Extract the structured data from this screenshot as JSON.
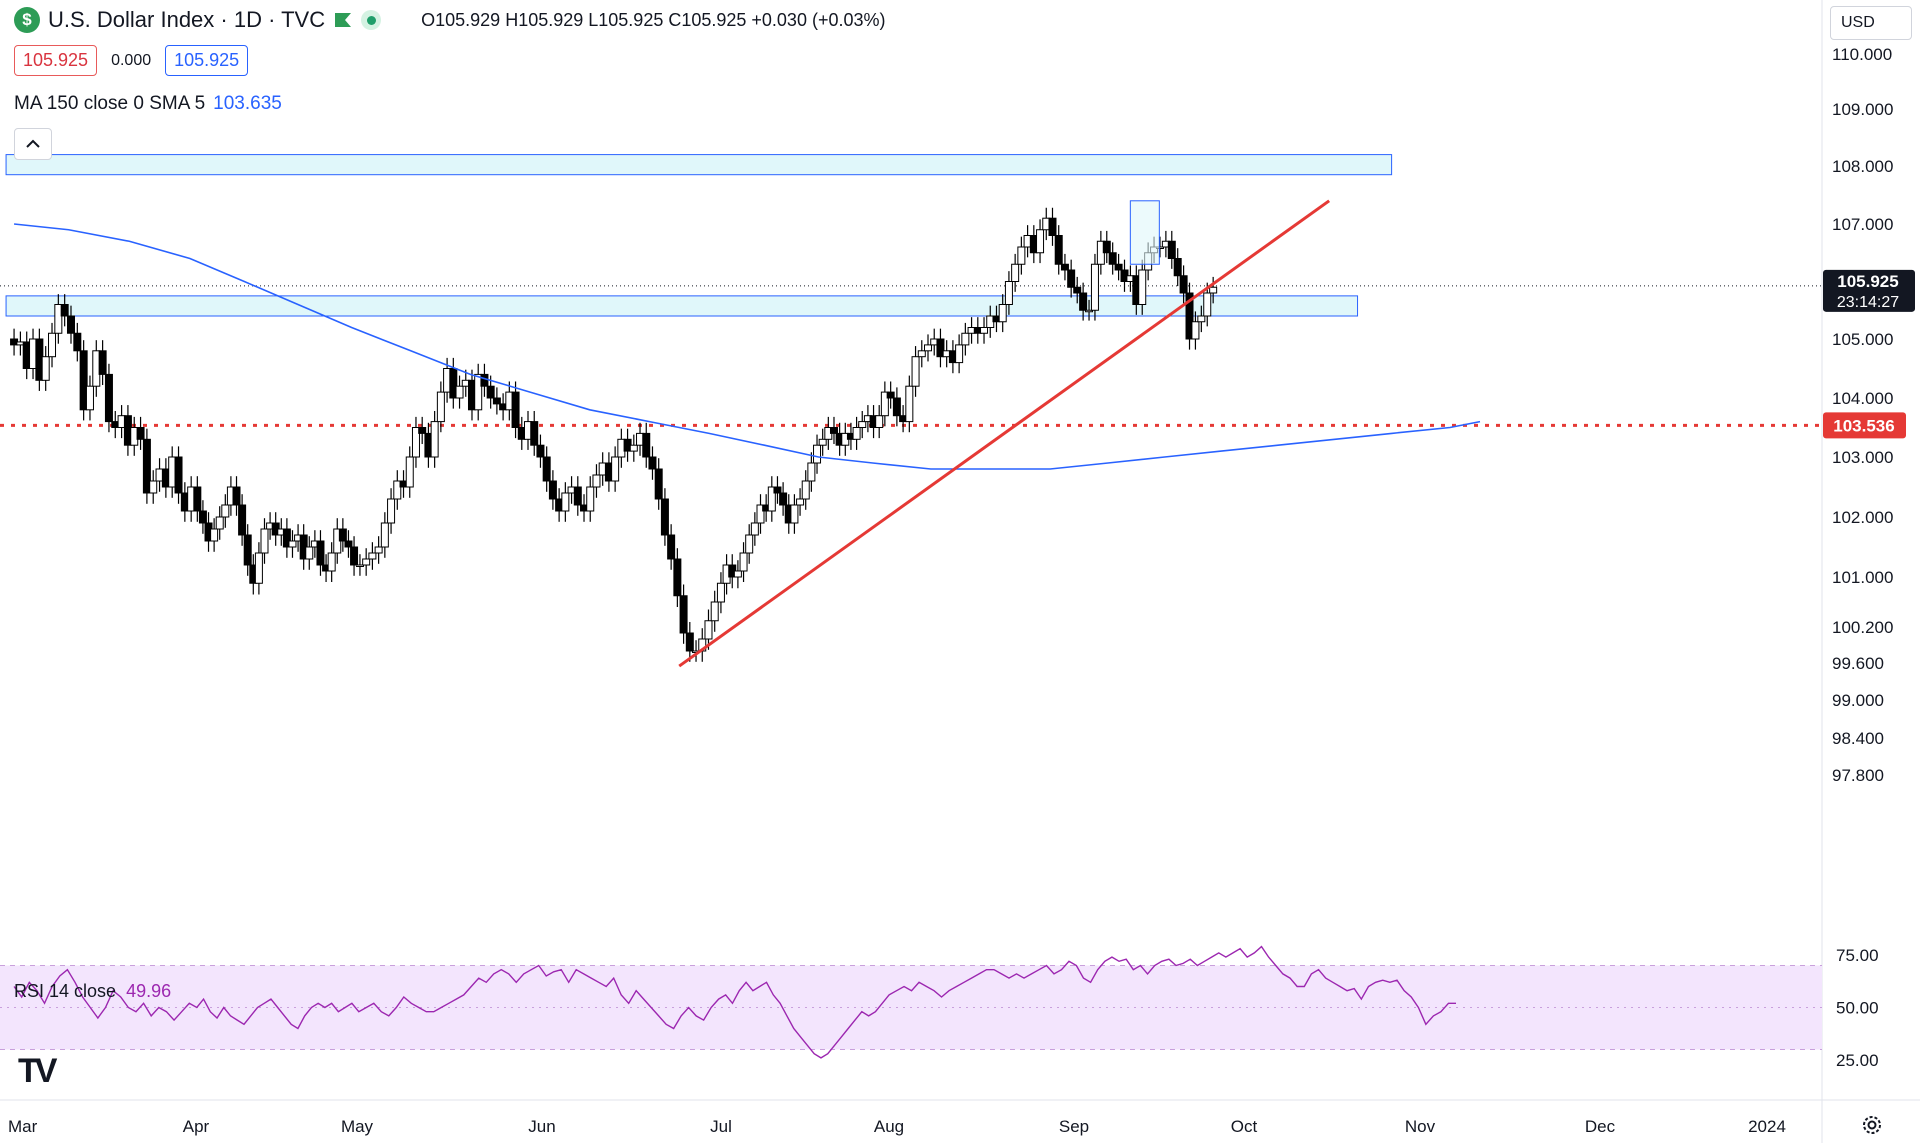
{
  "header": {
    "symbol_icon": "dollar-sign-icon",
    "title": "U.S. Dollar Index · 1D · TVC",
    "ohlc": "O105.929 H105.929 L105.925 C105.925 +0.030 (+0.03%)",
    "bid": "105.925",
    "spread": "0.000",
    "ask": "105.925",
    "ma_label": "MA 150 close 0 SMA 5",
    "ma_value": "103.635",
    "rsi_label": "RSI 14 close",
    "rsi_value": "49.96",
    "currency": "USD",
    "logo": "TV"
  },
  "colors": {
    "up": "#ffffff",
    "down": "#000000",
    "ma": "#2962ff",
    "zone_fill": "#e0f7fa",
    "zone_border": "#2962ff",
    "trendline": "#e53935",
    "support": "#e53935",
    "rsi": "#9c27b0",
    "rsi_band": "#f3e5fd"
  },
  "price_axis": {
    "labels": [
      "110.000",
      "109.000",
      "108.000",
      "107.000",
      "104.000",
      "103.000",
      "102.000",
      "101.000",
      "100.200",
      "99.600",
      "99.000",
      "98.400",
      "97.800"
    ],
    "values": [
      110,
      109,
      108,
      107,
      104,
      103,
      102,
      101,
      100.2,
      99.6,
      99,
      98.4,
      97.8
    ],
    "extra_labels": [
      "105.000"
    ],
    "extra_values": [
      105
    ],
    "current_price": "105.925",
    "countdown": "23:14:27",
    "support_price": "103.536",
    "support_value": 103.536
  },
  "rsi_axis": {
    "labels": [
      "75.00",
      "50.00",
      "25.00"
    ],
    "values": [
      75,
      50,
      25
    ],
    "band_upper": 70,
    "band_lower": 30
  },
  "time_axis": {
    "labels": [
      "Mar",
      "Apr",
      "May",
      "Jun",
      "Jul",
      "Aug",
      "Sep",
      "Oct",
      "Nov",
      "Dec",
      "2024"
    ],
    "day_index": [
      0,
      31,
      61,
      92,
      122,
      153,
      184,
      214,
      245,
      275,
      306
    ]
  },
  "chart_data": {
    "type": "candlestick",
    "start_day_index": 1,
    "closes": [
      104.9,
      104.95,
      104.5,
      105.0,
      104.3,
      104.7,
      105.1,
      105.6,
      105.4,
      105.1,
      104.8,
      103.8,
      104.2,
      104.8,
      104.4,
      103.6,
      103.5,
      103.7,
      103.2,
      103.5,
      103.3,
      102.4,
      102.6,
      102.8,
      102.5,
      103.0,
      102.4,
      102.1,
      102.5,
      102.1,
      101.9,
      101.6,
      101.8,
      102.0,
      102.2,
      102.5,
      102.2,
      101.7,
      101.2,
      100.9,
      101.4,
      101.8,
      101.9,
      101.7,
      101.8,
      101.5,
      101.6,
      101.7,
      101.3,
      101.5,
      101.6,
      101.2,
      101.1,
      101.4,
      101.8,
      101.6,
      101.5,
      101.2,
      101.2,
      101.3,
      101.4,
      101.5,
      101.9,
      102.3,
      102.6,
      102.5,
      103.0,
      103.5,
      103.4,
      103.0,
      103.6,
      104.1,
      104.5,
      104.0,
      104.2,
      104.3,
      103.8,
      104.4,
      104.2,
      104.0,
      103.9,
      103.8,
      104.1,
      103.5,
      103.3,
      103.6,
      103.2,
      103.0,
      102.6,
      102.3,
      102.1,
      102.4,
      102.5,
      102.2,
      102.1,
      102.5,
      102.7,
      102.9,
      102.6,
      103.0,
      103.3,
      103.1,
      103.2,
      103.4,
      103.0,
      102.8,
      102.3,
      101.7,
      101.3,
      100.7,
      100.1,
      99.8,
      99.8,
      100.0,
      100.3,
      100.6,
      100.9,
      101.2,
      101.0,
      101.1,
      101.4,
      101.7,
      101.9,
      102.2,
      102.1,
      102.5,
      102.4,
      102.2,
      101.9,
      102.2,
      102.3,
      102.6,
      102.9,
      103.2,
      103.3,
      103.5,
      103.4,
      103.2,
      103.4,
      103.3,
      103.5,
      103.6,
      103.7,
      103.5,
      103.7,
      104.1,
      104.0,
      103.7,
      103.6,
      104.2,
      104.7,
      104.8,
      104.9,
      105.0,
      104.7,
      104.8,
      104.6,
      104.9,
      105.1,
      105.2,
      105.1,
      105.2,
      105.4,
      105.3,
      105.6,
      106.0,
      106.3,
      106.6,
      106.8,
      106.5,
      106.9,
      107.1,
      106.8,
      106.3,
      106.2,
      105.9,
      105.8,
      105.5,
      105.5,
      106.3,
      106.7,
      106.5,
      106.3,
      106.2,
      106.0,
      106.1,
      105.6,
      106.2,
      106.5,
      106.6,
      106.6,
      106.7,
      106.4,
      106.1,
      105.8,
      105.0,
      105.3,
      105.4,
      105.8,
      105.9
    ],
    "ma150": [
      107.0,
      106.9,
      106.7,
      106.4,
      106.0,
      105.6,
      105.2,
      104.8,
      104.4,
      104.1,
      103.8,
      103.6,
      103.4,
      103.2,
      103.0,
      102.9,
      102.8,
      102.8,
      102.8,
      102.9,
      103.0,
      103.1,
      103.2,
      103.3,
      103.4,
      103.5,
      103.6
    ],
    "ma150_day_index": [
      1,
      10,
      20,
      30,
      40,
      50,
      60,
      70,
      80,
      90,
      100,
      110,
      120,
      130,
      140,
      150,
      160,
      170,
      180,
      190,
      200,
      210,
      220,
      230,
      240,
      250,
      255
    ],
    "rsi": [
      60,
      55,
      62,
      58,
      52,
      60,
      65,
      68,
      62,
      55,
      50,
      45,
      50,
      58,
      55,
      50,
      48,
      52,
      46,
      50,
      48,
      44,
      48,
      52,
      50,
      54,
      48,
      45,
      50,
      46,
      44,
      42,
      46,
      50,
      52,
      54,
      50,
      46,
      42,
      40,
      46,
      50,
      52,
      50,
      52,
      48,
      50,
      52,
      48,
      50,
      52,
      48,
      46,
      50,
      55,
      52,
      50,
      48,
      48,
      50,
      52,
      54,
      56,
      60,
      64,
      62,
      66,
      68,
      66,
      62,
      66,
      68,
      70,
      65,
      67,
      68,
      62,
      68,
      66,
      64,
      62,
      60,
      64,
      56,
      52,
      58,
      54,
      50,
      46,
      42,
      40,
      46,
      50,
      46,
      44,
      50,
      54,
      56,
      52,
      58,
      62,
      58,
      60,
      62,
      56,
      52,
      46,
      40,
      36,
      32,
      28,
      26,
      28,
      32,
      36,
      40,
      44,
      48,
      46,
      48,
      52,
      56,
      58,
      60,
      58,
      62,
      60,
      58,
      55,
      58,
      60,
      62,
      64,
      66,
      68,
      68,
      66,
      64,
      66,
      64,
      66,
      68,
      70,
      66,
      68,
      72,
      70,
      64,
      62,
      68,
      72,
      74,
      72,
      73,
      68,
      70,
      66,
      70,
      72,
      73,
      70,
      71,
      73,
      70,
      72,
      74,
      76,
      74,
      76,
      78,
      74,
      76,
      79,
      74,
      70,
      66,
      64,
      60,
      60,
      66,
      68,
      64,
      62,
      60,
      58,
      59,
      54,
      60,
      62,
      63,
      62,
      63,
      58,
      55,
      50,
      42,
      46,
      48,
      52,
      52
    ],
    "trend_lines": [
      {
        "name": "uptrend",
        "from": {
          "day": 115,
          "value": 99.55
        },
        "to": {
          "day": 229,
          "value": 107.4
        }
      }
    ],
    "zones": [
      {
        "name": "upper-resistance-zone",
        "from_day": 1,
        "to_day": 240,
        "low": 107.85,
        "high": 108.2
      },
      {
        "name": "key-support-zone",
        "from_day": 1,
        "to_day": 234,
        "low": 105.4,
        "high": 105.75
      }
    ],
    "highlight_box": {
      "from_day": 195,
      "to_day": 198,
      "low": 106.3,
      "high": 107.4
    },
    "support_line": {
      "value": 103.536
    }
  }
}
